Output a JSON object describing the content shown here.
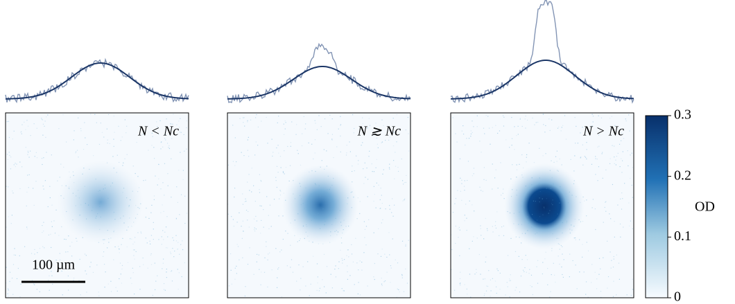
{
  "panels": [
    {
      "label": "N < Nc"
    },
    {
      "label": "N ≳ Nc"
    },
    {
      "label": "N > Nc"
    }
  ],
  "scale_bar": {
    "label": "100 µm"
  },
  "colorbar": {
    "label": "OD",
    "lim": [
      0,
      0.3
    ],
    "ticks": [
      0,
      0.1,
      0.2,
      0.3
    ],
    "color": "#08306b"
  }
}
